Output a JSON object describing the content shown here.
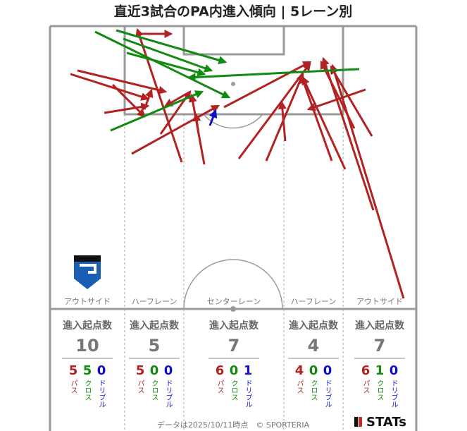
{
  "title": "直近3試合のPA内進入傾向 | 5レーン別",
  "stat_heading": "進入起点数",
  "kind_labels": {
    "pass": "パス",
    "cross": "クロス",
    "dribble": "ドリブル"
  },
  "lanes": [
    {
      "name": "アウトサイド",
      "total": 10,
      "pass": 5,
      "cross": 5,
      "dribble": 0
    },
    {
      "name": "ハーフレーン",
      "total": 5,
      "pass": 5,
      "cross": 0,
      "dribble": 0
    },
    {
      "name": "センターレーン",
      "total": 7,
      "pass": 6,
      "cross": 0,
      "dribble": 1
    },
    {
      "name": "ハーフレーン",
      "total": 4,
      "pass": 4,
      "cross": 0,
      "dribble": 0
    },
    {
      "name": "アウトサイド",
      "total": 7,
      "pass": 6,
      "cross": 1,
      "dribble": 0
    }
  ],
  "footer": "データは2025/10/11時点　© SPORTERIA",
  "brand": "STATs"
}
